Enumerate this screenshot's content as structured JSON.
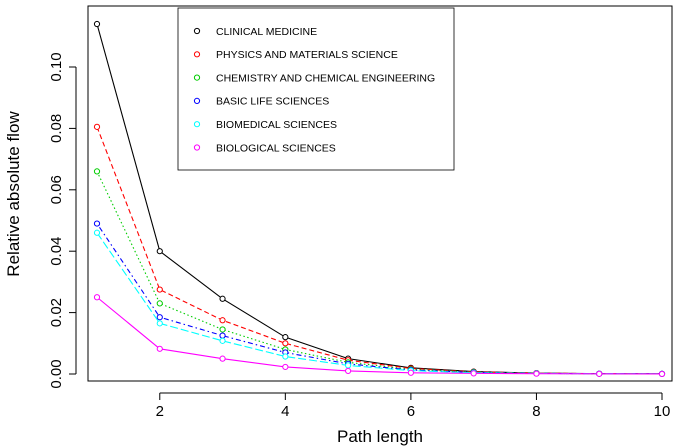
{
  "chart_data": {
    "type": "line",
    "title": "",
    "xlabel": "Path length",
    "ylabel": "Relative absolute flow",
    "x": [
      1,
      2,
      3,
      4,
      5,
      6,
      7,
      8,
      9,
      10
    ],
    "xlim": [
      1,
      10
    ],
    "ylim": [
      0,
      0.115
    ],
    "xticks": [
      2,
      4,
      6,
      8,
      10
    ],
    "yticks": [
      0.0,
      0.02,
      0.04,
      0.06,
      0.08,
      0.1
    ],
    "ytick_labels": [
      "0.00",
      "0.02",
      "0.04",
      "0.06",
      "0.08",
      "0.10"
    ],
    "xtick_labels": [
      "2",
      "4",
      "6",
      "8",
      "10"
    ],
    "grid": false,
    "legend_position": "top-right",
    "series": [
      {
        "name": "CLINICAL MEDICINE",
        "color": "#000000",
        "dash": "solid",
        "values": [
          0.114,
          0.04,
          0.0245,
          0.012,
          0.005,
          0.002,
          0.0008,
          0.0003,
          0.0001,
          5e-05
        ]
      },
      {
        "name": "PHYSICS AND MATERIALS SCIENCE",
        "color": "#ff0000",
        "dash": "dashed",
        "values": [
          0.0805,
          0.0275,
          0.0175,
          0.01,
          0.0045,
          0.0018,
          0.0007,
          0.0003,
          0.0001,
          5e-05
        ]
      },
      {
        "name": "CHEMISTRY AND CHEMICAL ENGINEERING",
        "color": "#00cd00",
        "dash": "dotted",
        "values": [
          0.066,
          0.023,
          0.0145,
          0.008,
          0.0038,
          0.0015,
          0.0006,
          0.0002,
          0.0001,
          5e-05
        ]
      },
      {
        "name": "BASIC LIFE SCIENCES",
        "color": "#0000ff",
        "dash": "dotdash",
        "values": [
          0.049,
          0.0185,
          0.0125,
          0.007,
          0.0033,
          0.0013,
          0.0005,
          0.0002,
          0.0001,
          5e-05
        ]
      },
      {
        "name": "BIOMEDICAL SCIENCES",
        "color": "#00ffff",
        "dash": "longdash",
        "values": [
          0.046,
          0.0165,
          0.0108,
          0.0057,
          0.0028,
          0.0011,
          0.0004,
          0.0002,
          0.0001,
          5e-05
        ]
      },
      {
        "name": "BIOLOGICAL SCIENCES",
        "color": "#ff00ff",
        "dash": "solid",
        "values": [
          0.025,
          0.0082,
          0.005,
          0.0023,
          0.001,
          0.0004,
          0.0002,
          0.0001,
          5e-05,
          2e-05
        ]
      }
    ]
  }
}
